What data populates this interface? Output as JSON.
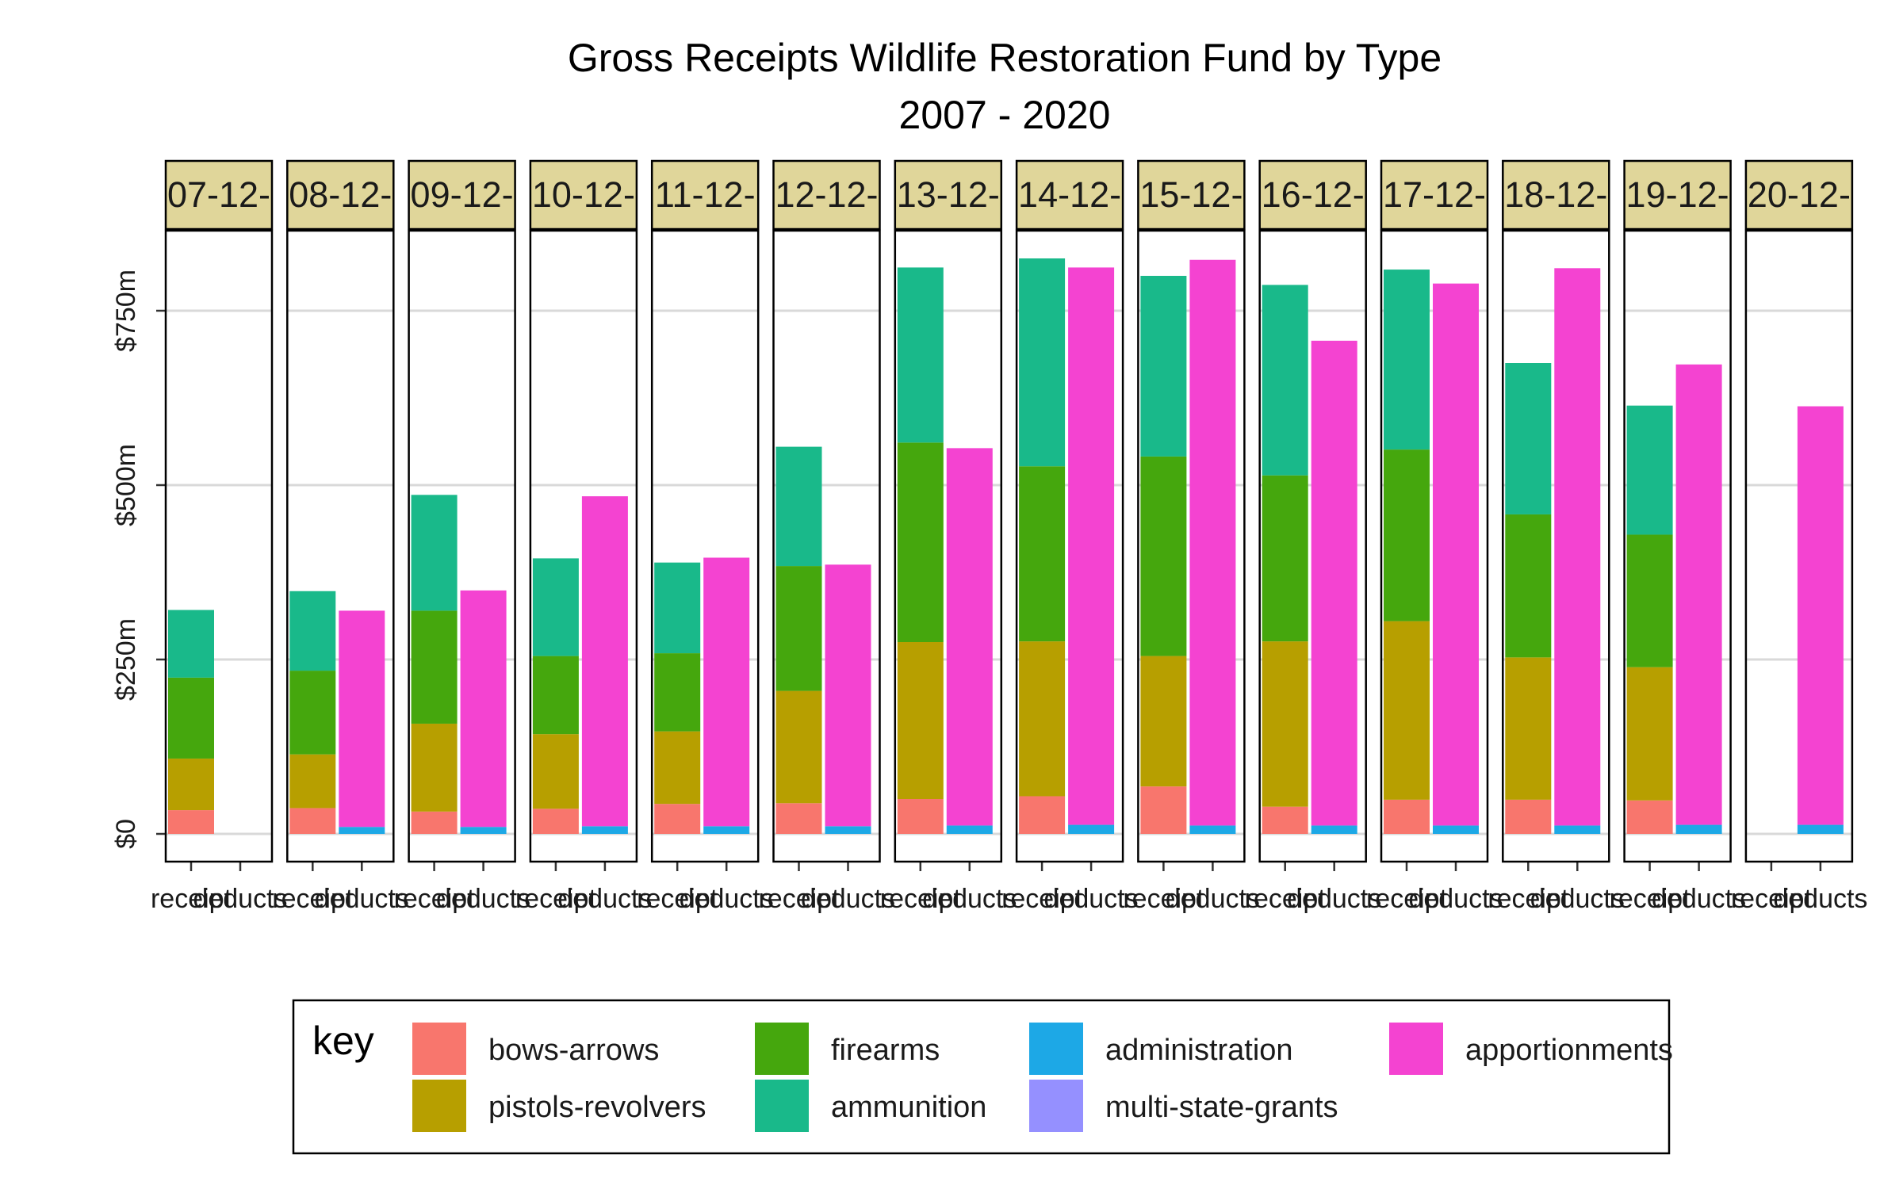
{
  "chart_data": {
    "type": "bar",
    "title": "Gross Receipts Wildlife Restoration Fund by Type",
    "subtitle": "2007 - 2020",
    "stacked": true,
    "facets": [
      "07-12-",
      "08-12-",
      "09-12-",
      "10-12-",
      "11-12-",
      "12-12-",
      "13-12-",
      "14-12-",
      "15-12-",
      "16-12-",
      "17-12-",
      "18-12-",
      "19-12-",
      "20-12-"
    ],
    "categories": [
      "receipt",
      "deducts"
    ],
    "y_tick_labels": [
      "$0",
      "$250m",
      "$500m",
      "$750m"
    ],
    "y_ticks": [
      0,
      250,
      500,
      750
    ],
    "ylim": [
      -45,
      870
    ],
    "grid": true,
    "legend_position": "bottom",
    "legend_title": "key",
    "series": [
      {
        "name": "bows-arrows",
        "color": "#F8766D",
        "receipt": [
          34,
          37,
          32,
          36,
          43,
          44,
          50,
          54,
          68,
          39,
          49,
          49,
          48,
          0
        ],
        "deducts": [
          0,
          0,
          0,
          0,
          0,
          0,
          0,
          0,
          0,
          0,
          0,
          0,
          0,
          0
        ]
      },
      {
        "name": "pistols-revolvers",
        "color": "#B79F00",
        "receipt": [
          74,
          77,
          126,
          107,
          104,
          161,
          225,
          222,
          187,
          237,
          256,
          204,
          191,
          0
        ],
        "deducts": [
          0,
          0,
          0,
          0,
          0,
          0,
          0,
          0,
          0,
          0,
          0,
          0,
          0,
          0
        ]
      },
      {
        "name": "firearms",
        "color": "#45A70D",
        "receipt": [
          116,
          120,
          162,
          112,
          112,
          179,
          286,
          251,
          286,
          238,
          246,
          205,
          190,
          0
        ],
        "deducts": [
          0,
          0,
          0,
          0,
          0,
          0,
          0,
          0,
          0,
          0,
          0,
          0,
          0,
          0
        ]
      },
      {
        "name": "ammunition",
        "color": "#19B98A",
        "receipt": [
          97,
          114,
          166,
          140,
          130,
          171,
          251,
          298,
          259,
          273,
          258,
          217,
          185,
          0
        ],
        "deducts": [
          0,
          0,
          0,
          0,
          0,
          0,
          0,
          0,
          0,
          0,
          0,
          0,
          0,
          0
        ]
      },
      {
        "name": "administration",
        "color": "#1DA8E6",
        "receipt": [
          0,
          0,
          0,
          0,
          0,
          0,
          0,
          0,
          0,
          0,
          0,
          0,
          0,
          0
        ],
        "deducts": [
          0,
          10,
          10,
          11,
          11,
          11,
          12,
          13,
          12,
          12,
          12,
          12,
          13,
          13
        ]
      },
      {
        "name": "multi-state-grants",
        "color": "#9590FF",
        "receipt": [
          0,
          0,
          0,
          0,
          0,
          0,
          0,
          0,
          0,
          0,
          0,
          0,
          0,
          0
        ],
        "deducts": [
          0,
          0,
          0,
          0,
          0,
          0,
          0,
          0,
          0,
          0,
          0,
          0,
          0,
          0
        ]
      },
      {
        "name": "apportionments",
        "color": "#F443D1",
        "receipt": [
          0,
          0,
          0,
          0,
          0,
          0,
          0,
          0,
          0,
          0,
          0,
          0,
          0,
          0
        ],
        "deducts": [
          0,
          310,
          339,
          473,
          385,
          375,
          541,
          799,
          811,
          695,
          777,
          799,
          660,
          600
        ]
      }
    ]
  }
}
